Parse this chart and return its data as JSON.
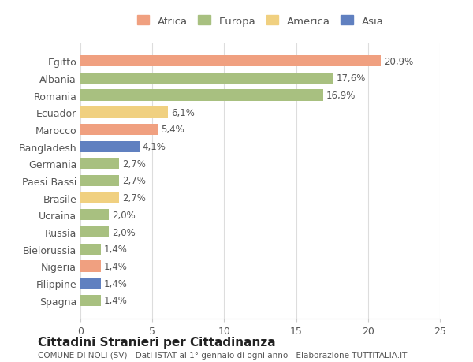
{
  "countries": [
    "Egitto",
    "Albania",
    "Romania",
    "Ecuador",
    "Marocco",
    "Bangladesh",
    "Germania",
    "Paesi Bassi",
    "Brasile",
    "Ucraina",
    "Russia",
    "Bielorussia",
    "Nigeria",
    "Filippine",
    "Spagna"
  ],
  "values": [
    20.9,
    17.6,
    16.9,
    6.1,
    5.4,
    4.1,
    2.7,
    2.7,
    2.7,
    2.0,
    2.0,
    1.4,
    1.4,
    1.4,
    1.4
  ],
  "labels": [
    "20,9%",
    "17,6%",
    "16,9%",
    "6,1%",
    "5,4%",
    "4,1%",
    "2,7%",
    "2,7%",
    "2,7%",
    "2,0%",
    "2,0%",
    "1,4%",
    "1,4%",
    "1,4%",
    "1,4%"
  ],
  "continents": [
    "Africa",
    "Europa",
    "Europa",
    "America",
    "Africa",
    "Asia",
    "Europa",
    "Europa",
    "America",
    "Europa",
    "Europa",
    "Europa",
    "Africa",
    "Asia",
    "Europa"
  ],
  "colors": {
    "Africa": "#F0A080",
    "Europa": "#A8C080",
    "America": "#F0D080",
    "Asia": "#6080C0"
  },
  "legend_order": [
    "Africa",
    "Europa",
    "America",
    "Asia"
  ],
  "legend_colors": {
    "Africa": "#F0A080",
    "Europa": "#A8C080",
    "America": "#F0D080",
    "Asia": "#6080C0"
  },
  "title": "Cittadini Stranieri per Cittadinanza",
  "subtitle": "COMUNE DI NOLI (SV) - Dati ISTAT al 1° gennaio di ogni anno - Elaborazione TUTTITALIA.IT",
  "xlim": [
    0,
    25
  ],
  "xticks": [
    0,
    5,
    10,
    15,
    20,
    25
  ],
  "background_color": "#ffffff",
  "bar_height": 0.65
}
